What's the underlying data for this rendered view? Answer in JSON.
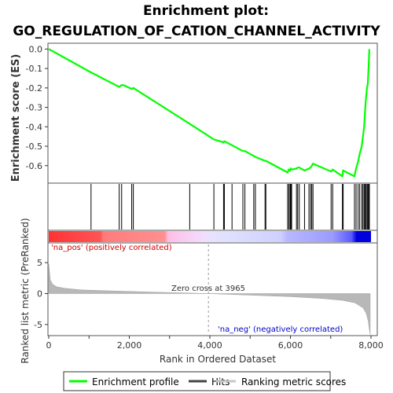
{
  "chart_data": {
    "type": "line",
    "title": "Enrichment plot:",
    "subtitle": "GO_REGULATION_OF_CATION_CHANNEL_ACTIVITY",
    "es_panel": {
      "ylabel": "Enrichment score (ES)",
      "ylim": [
        -0.69,
        0.03
      ],
      "yticks": [
        0.0,
        -0.1,
        -0.2,
        -0.3,
        -0.4,
        -0.5,
        -0.6
      ],
      "ytick_labels": [
        "0.0",
        "-0.1",
        "-0.2",
        "-0.3",
        "-0.4",
        "-0.5",
        "-0.6"
      ],
      "series_name": "Enrichment profile",
      "color": "#00ff00",
      "x": [
        0,
        1050,
        1750,
        1810,
        1850,
        2060,
        2100,
        3500,
        4100,
        4340,
        4360,
        4550,
        4820,
        4870,
        5090,
        5130,
        5370,
        5390,
        5930,
        5960,
        5990,
        6010,
        6030,
        6150,
        6180,
        6220,
        6350,
        6460,
        6500,
        6530,
        6560,
        7010,
        7050,
        7290,
        7310,
        7590,
        7630,
        7680,
        7720,
        7770,
        7800,
        7830,
        7850,
        7870,
        7900,
        7920,
        7940,
        7960
      ],
      "y": [
        0.0,
        -0.12,
        -0.195,
        -0.185,
        -0.185,
        -0.205,
        -0.2,
        -0.385,
        -0.465,
        -0.48,
        -0.475,
        -0.495,
        -0.525,
        -0.525,
        -0.55,
        -0.555,
        -0.575,
        -0.575,
        -0.635,
        -0.62,
        -0.625,
        -0.615,
        -0.62,
        -0.615,
        -0.61,
        -0.61,
        -0.625,
        -0.615,
        -0.61,
        -0.6,
        -0.59,
        -0.63,
        -0.62,
        -0.655,
        -0.625,
        -0.655,
        -0.615,
        -0.58,
        -0.54,
        -0.5,
        -0.45,
        -0.4,
        -0.33,
        -0.27,
        -0.2,
        -0.18,
        -0.1,
        0.0
      ]
    },
    "hits": [
      1050,
      1750,
      1810,
      2060,
      2100,
      3500,
      4100,
      4340,
      4360,
      4550,
      4820,
      4870,
      5090,
      5130,
      5370,
      5390,
      5930,
      5960,
      5990,
      6010,
      6030,
      6150,
      6180,
      6220,
      6350,
      6460,
      6500,
      6530,
      6560,
      7010,
      7050,
      7290,
      7310,
      7590,
      7630,
      7680,
      7720,
      7770,
      7800,
      7830,
      7850,
      7870,
      7900,
      7920,
      7940,
      7960
    ],
    "metric_panel": {
      "ylabel": "Ranked list metric (PreRanked)",
      "ylim": [
        -6.8,
        8.2
      ],
      "yticks": [
        5,
        0,
        -5
      ],
      "ytick_labels": [
        "5",
        "0",
        "-5"
      ],
      "series_name": "Ranking metric scores",
      "color": "#b0b0b0",
      "x": [
        0,
        40,
        100,
        200,
        400,
        800,
        1500,
        2500,
        3965,
        5000,
        6000,
        6800,
        7300,
        7600,
        7800,
        7880,
        7930,
        7960,
        7980
      ],
      "y": [
        4.8,
        2.2,
        1.5,
        1.1,
        0.85,
        0.6,
        0.45,
        0.25,
        0.0,
        -0.25,
        -0.5,
        -0.8,
        -1.1,
        -1.5,
        -2.3,
        -3.2,
        -4.4,
        -5.8,
        -6.6
      ]
    },
    "xlabel": "Rank in Ordered Dataset",
    "xlim": [
      0,
      8000
    ],
    "xticks": [
      0,
      1000,
      2000,
      3000,
      4000,
      5000,
      6000,
      7000,
      8000
    ],
    "xtick_labels": [
      "0",
      "2,000",
      "4,000",
      "6,000",
      "8,000"
    ],
    "zero_cross_label": "Zero cross at 3965",
    "zero_cross_rank": 3965,
    "na_pos_label": "'na_pos' (positively correlated)",
    "na_neg_label": "'na_neg' (negatively correlated)",
    "legend": {
      "position": "bottom",
      "items": [
        {
          "label": "Enrichment profile",
          "color": "#00ff00"
        },
        {
          "label": "Hits",
          "color": "#444444"
        },
        {
          "label": "Ranking metric scores",
          "color": "#c8c8c8"
        }
      ]
    },
    "gradient_colors": {
      "pos_strong": "#ff3333",
      "pos_mid": "#ff8080",
      "pos_light": "#ffb0e0",
      "neutral": "#e0e0ff",
      "neg_light": "#c0c0ff",
      "neg_strong": "#0000e0"
    }
  }
}
